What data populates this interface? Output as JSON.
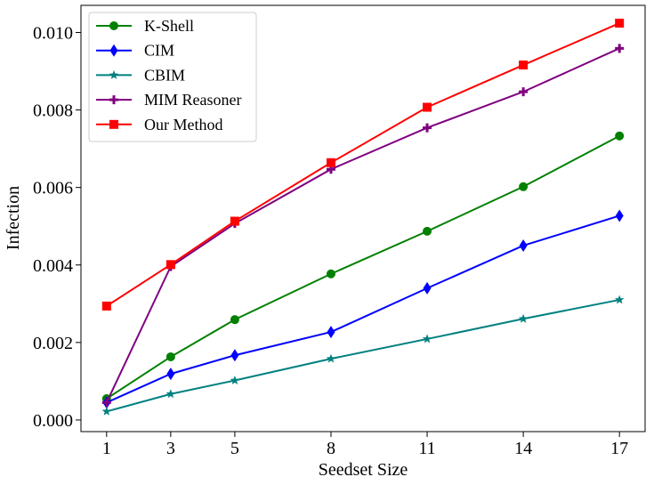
{
  "chart_data": {
    "type": "line",
    "title": "",
    "xlabel": "Seedset Size",
    "ylabel": "Infection",
    "x": [
      1,
      3,
      5,
      8,
      11,
      14,
      17
    ],
    "x_tick_labels": [
      "1",
      "3",
      "5",
      "8",
      "11",
      "14",
      "17"
    ],
    "ylim": [
      -0.0003,
      0.0107
    ],
    "y_ticks": [
      0.0,
      0.002,
      0.004,
      0.006,
      0.008,
      0.01
    ],
    "y_tick_labels": [
      "0.000",
      "0.002",
      "0.004",
      "0.006",
      "0.008",
      "0.010"
    ],
    "grid": false,
    "legend_position": "top-left",
    "series": [
      {
        "name": "K-Shell",
        "color": "#008000",
        "marker": "circle",
        "values": [
          0.00055,
          0.00163,
          0.00259,
          0.00377,
          0.00487,
          0.00602,
          0.00733
        ]
      },
      {
        "name": "CIM",
        "color": "#0000ff",
        "marker": "diamond",
        "values": [
          0.00045,
          0.00119,
          0.00167,
          0.00227,
          0.0034,
          0.0045,
          0.00527
        ]
      },
      {
        "name": "CBIM",
        "color": "#008080",
        "marker": "star",
        "values": [
          0.00022,
          0.00067,
          0.00102,
          0.00158,
          0.00209,
          0.00261,
          0.0031
        ]
      },
      {
        "name": "MIM Reasoner",
        "color": "#800080",
        "marker": "plus",
        "values": [
          0.00045,
          0.00396,
          0.00507,
          0.00647,
          0.00754,
          0.00847,
          0.00959
        ]
      },
      {
        "name": "Our Method",
        "color": "#ff0000",
        "marker": "square",
        "values": [
          0.00294,
          0.00401,
          0.00513,
          0.00664,
          0.00807,
          0.00916,
          0.01024
        ]
      }
    ]
  }
}
